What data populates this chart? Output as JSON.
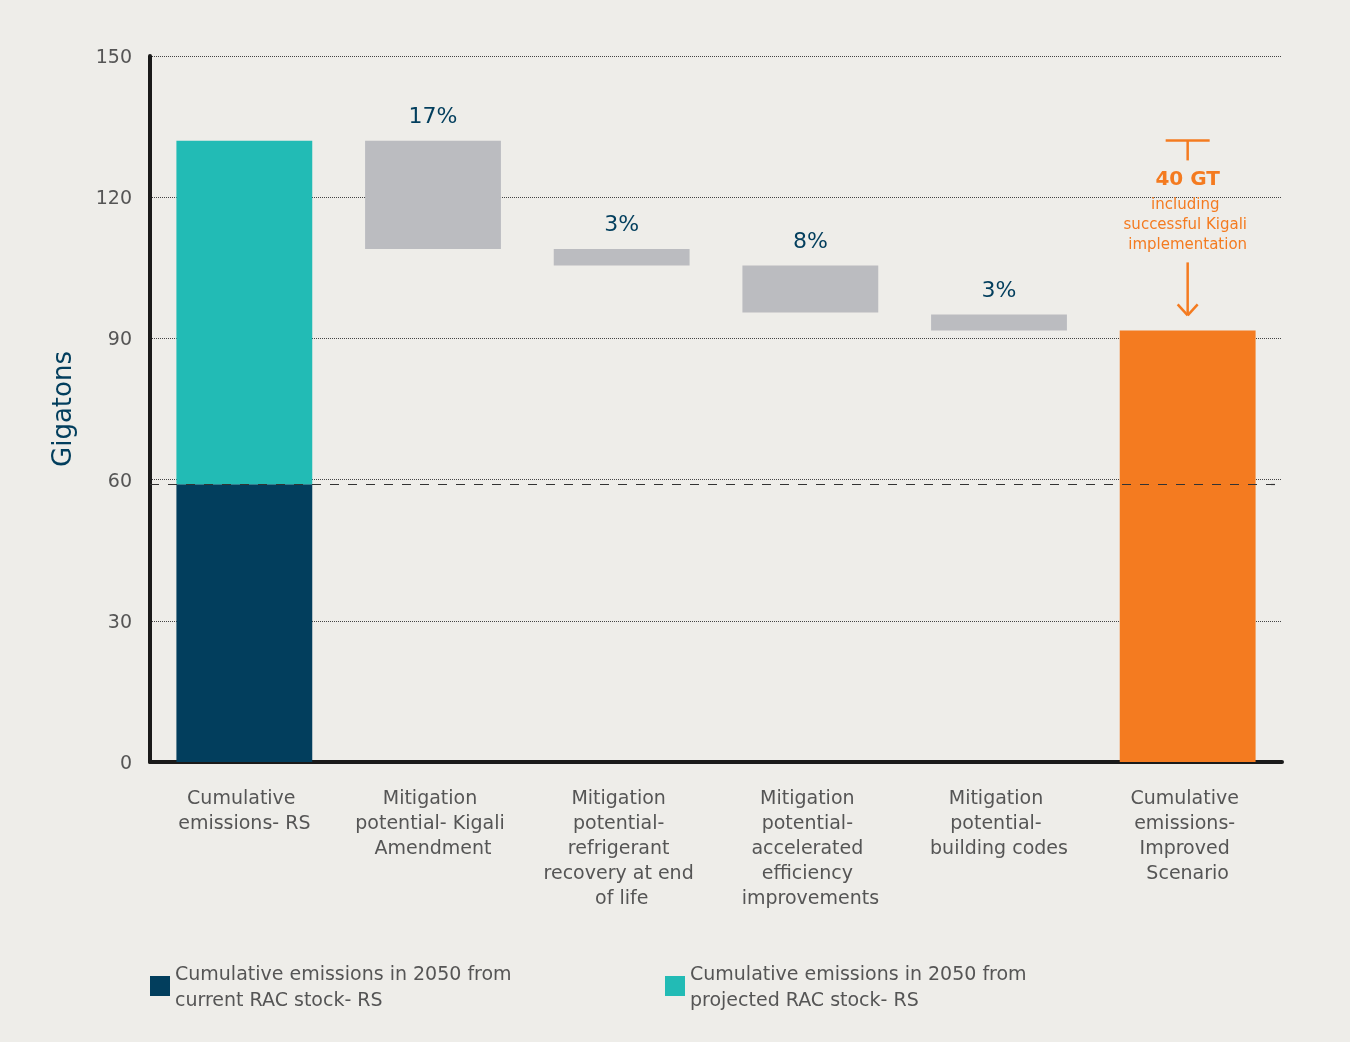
{
  "chart_data": {
    "type": "bar",
    "stacked": true,
    "categories": [
      "Cumulative emissions- RS",
      "Mitigation potential- Kigali Amendment",
      "Mitigation potential- refrigerant recovery at end of life",
      "Mitigation potential- accelerated efficiency improvements",
      "Mitigation potential- building codes",
      "Cumulative emissions- Improved Scenario"
    ],
    "series": [
      {
        "name": "Cumulative emissions in 2050 from current RAC stock- RS",
        "color": "#023e5d",
        "values": [
          59,
          null,
          null,
          null,
          null,
          null
        ]
      },
      {
        "name": "Cumulative emissions in 2050 from projected RAC stock- RS",
        "color": "#22bbb5",
        "values": [
          73,
          null,
          null,
          null,
          null,
          null
        ]
      },
      {
        "color": "#bbbcc0",
        "values": [
          null,
          23,
          3.5,
          10,
          3.4,
          null
        ],
        "base": [
          null,
          109,
          105.5,
          95.5,
          91.7,
          null
        ]
      },
      {
        "color": "#f47b20",
        "values": [
          null,
          null,
          null,
          null,
          null,
          91.7
        ]
      }
    ],
    "ylabel": "Gigatons",
    "ylim": [
      0,
      150
    ],
    "yticks": [
      0,
      30,
      60,
      90,
      120,
      150
    ],
    "grid": "y",
    "legend": "bottom",
    "ref_lines": [
      {
        "axis": "y",
        "value": 59,
        "line_style": "dashed",
        "color": "#333333"
      }
    ],
    "annotations": [
      "40 GT",
      "including successful Kigali implementation",
      {
        "text": "17%",
        "x": "Mitigation potential- Kigali Amendment",
        "y": 132
      },
      {
        "text": "3%",
        "x": "Mitigation potential- refrigerant recovery at end of life",
        "y": 109
      },
      {
        "text": "8%",
        "x": "Mitigation potential- accelerated efficiency improvements",
        "y": 105.5
      },
      {
        "text": "3%",
        "x": "Mitigation potential- building codes",
        "y": 95.1
      }
    ]
  }
}
